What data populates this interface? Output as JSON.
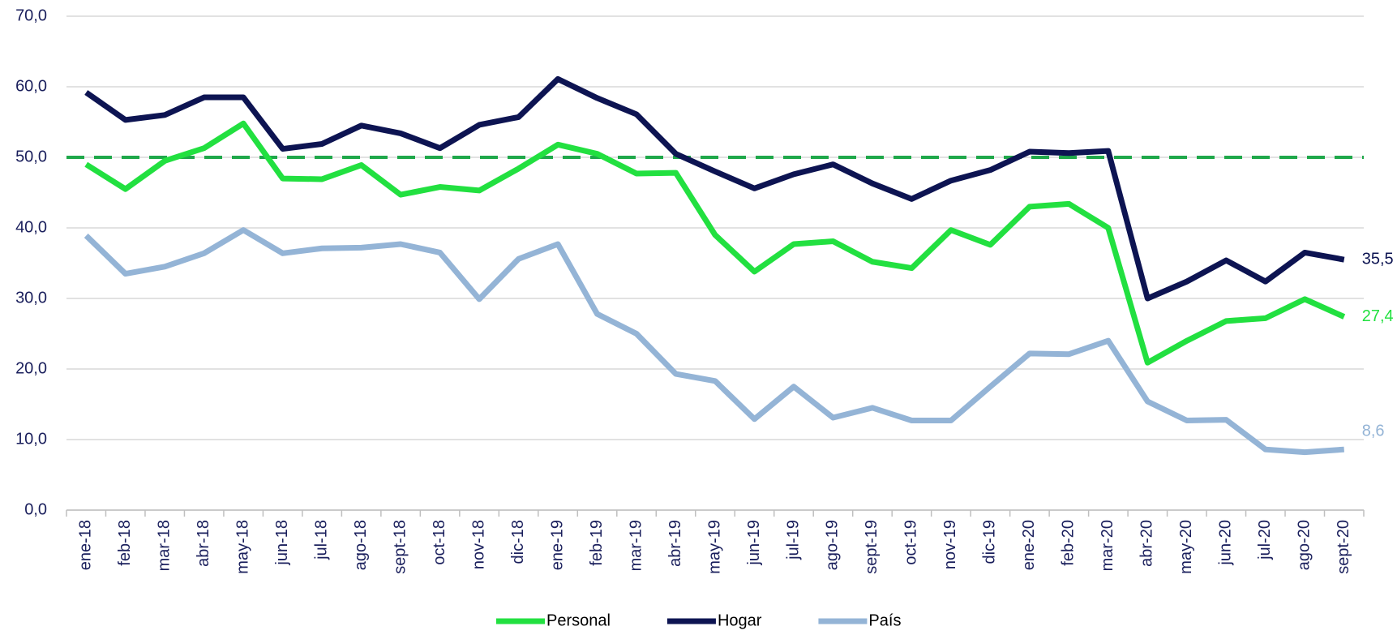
{
  "chart_data": {
    "type": "line",
    "categories": [
      "ene-18",
      "feb-18",
      "mar-18",
      "abr-18",
      "may-18",
      "jun-18",
      "jul-18",
      "ago-18",
      "sept-18",
      "oct-18",
      "nov-18",
      "dic-18",
      "ene-19",
      "feb-19",
      "mar-19",
      "abr-19",
      "may-19",
      "jun-19",
      "jul-19",
      "ago-19",
      "sept-19",
      "oct-19",
      "nov-19",
      "dic-19",
      "ene-20",
      "feb-20",
      "mar-20",
      "abr-20",
      "may-20",
      "jun-20",
      "jul-20",
      "ago-20",
      "sept-20"
    ],
    "series": [
      {
        "name": "Personal",
        "color": "#22e040",
        "values": [
          49.0,
          45.5,
          49.5,
          51.3,
          54.8,
          47.0,
          46.9,
          48.9,
          44.7,
          45.8,
          45.3,
          48.4,
          51.8,
          50.5,
          47.7,
          47.8,
          39.0,
          33.8,
          37.7,
          38.1,
          35.2,
          34.3,
          39.7,
          37.6,
          43.0,
          43.4,
          40.0,
          20.9,
          24.0,
          26.8,
          27.2,
          29.9,
          27.4
        ],
        "value_labels": [
          null,
          null,
          null,
          null,
          null,
          null,
          null,
          null,
          null,
          null,
          null,
          null,
          null,
          null,
          null,
          null,
          null,
          null,
          null,
          null,
          null,
          null,
          null,
          null,
          null,
          null,
          null,
          null,
          null,
          null,
          null,
          null,
          "27,4"
        ]
      },
      {
        "name": "Hogar",
        "color": "#0d1452",
        "values": [
          59.2,
          55.3,
          56.0,
          58.5,
          58.5,
          51.2,
          51.9,
          54.5,
          53.4,
          51.3,
          54.6,
          55.7,
          61.1,
          58.4,
          56.1,
          50.5,
          48.0,
          45.6,
          47.6,
          49.0,
          46.3,
          44.1,
          46.7,
          48.2,
          50.8,
          50.6,
          50.9,
          30.0,
          32.4,
          35.4,
          32.4,
          36.5,
          35.5
        ],
        "value_labels": [
          null,
          null,
          null,
          null,
          null,
          null,
          null,
          null,
          null,
          null,
          null,
          null,
          null,
          null,
          null,
          null,
          null,
          null,
          null,
          null,
          null,
          null,
          null,
          null,
          null,
          null,
          null,
          null,
          null,
          null,
          null,
          null,
          "35,5"
        ]
      },
      {
        "name": "País",
        "color": "#94b4d6",
        "values": [
          38.9,
          33.5,
          34.5,
          36.4,
          39.7,
          36.4,
          37.1,
          37.2,
          37.7,
          36.5,
          29.9,
          35.6,
          37.7,
          27.8,
          25.0,
          19.3,
          18.3,
          12.9,
          17.5,
          13.1,
          14.5,
          12.7,
          12.7,
          17.5,
          22.2,
          22.1,
          24.0,
          15.4,
          12.7,
          12.8,
          8.6,
          8.2,
          8.6
        ],
        "value_labels": [
          null,
          null,
          null,
          null,
          null,
          null,
          null,
          null,
          null,
          null,
          null,
          null,
          null,
          null,
          null,
          null,
          null,
          null,
          null,
          null,
          null,
          null,
          null,
          null,
          null,
          null,
          null,
          null,
          null,
          null,
          null,
          null,
          "8,6"
        ]
      }
    ],
    "reference_line": {
      "value": 50,
      "color": "#1fa84a"
    },
    "ylim": [
      0,
      70
    ],
    "yticks": [
      {
        "value": 0,
        "label": "0,0"
      },
      {
        "value": 10,
        "label": "10,0"
      },
      {
        "value": 20,
        "label": "20,0"
      },
      {
        "value": 30,
        "label": "30,0"
      },
      {
        "value": 40,
        "label": "40,0"
      },
      {
        "value": 50,
        "label": "50,0"
      },
      {
        "value": 60,
        "label": "60,0"
      },
      {
        "value": 70,
        "label": "70,0"
      }
    ],
    "grid": true,
    "legend": "bottom"
  }
}
